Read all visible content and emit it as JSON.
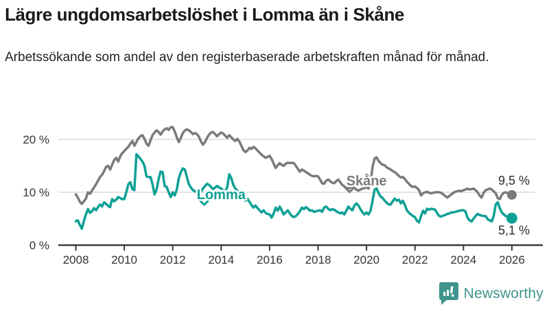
{
  "title": "Lägre ungdomsarbetslöshet i Lomma än i Skåne",
  "subtitle": "Arbetssökande som andel av den registerbaserade arbetskraften månad för månad.",
  "footer": {
    "brand": "Newsworthy",
    "logo_icon": "bar-chart-speech-bubble-icon"
  },
  "colors": {
    "lomma": "#0ea095",
    "skane": "#7a7a7a",
    "brand": "#3e948d",
    "grid": "#dcdcdc",
    "axis": "#3a3a3a",
    "text": "#1a1a1a"
  },
  "chart_data": {
    "type": "line",
    "unit": "%",
    "x_start_year": 2008,
    "x_interval": "monthly",
    "x_tick_years": [
      2008,
      2010,
      2012,
      2014,
      2016,
      2018,
      2020,
      2022,
      2024,
      2026
    ],
    "y_ticks": [
      {
        "value": 0,
        "label": "0 %"
      },
      {
        "value": 10,
        "label": "10 %"
      },
      {
        "value": 20,
        "label": "20 %"
      }
    ],
    "ylim": [
      0,
      24
    ],
    "grid": true,
    "annotations": [
      {
        "text": "Skåne",
        "x": 2020.0,
        "y": 12.2,
        "chevron_x": 2019.3,
        "chevron_y": 10.3,
        "color": "#7a7a7a"
      },
      {
        "text": "Lomma",
        "x": 2014.0,
        "y": 9.6,
        "chevron_x": 2013.3,
        "chevron_y": 7.9,
        "color": "#0ea095"
      }
    ],
    "series": [
      {
        "name": "Skåne",
        "color": "#7a7a7a",
        "end_label": "9,5 %",
        "end_value": 9.5,
        "values": [
          9.6,
          9.0,
          8.2,
          7.8,
          8.3,
          8.8,
          10.0,
          9.7,
          10.3,
          10.9,
          11.5,
          12.2,
          12.9,
          13.3,
          14.0,
          14.8,
          15.0,
          14.3,
          15.2,
          16.1,
          16.5,
          15.8,
          16.8,
          17.4,
          17.8,
          18.2,
          18.6,
          19.2,
          19.7,
          18.8,
          19.5,
          20.2,
          20.6,
          20.8,
          20.1,
          19.2,
          18.8,
          19.8,
          20.8,
          21.3,
          21.7,
          21.4,
          20.9,
          21.5,
          21.9,
          22.1,
          21.8,
          22.3,
          22.3,
          21.5,
          20.4,
          19.5,
          20.3,
          21.2,
          21.7,
          21.9,
          21.7,
          21.4,
          21.0,
          21.2,
          21.0,
          20.5,
          19.6,
          19.0,
          19.5,
          20.3,
          20.9,
          21.3,
          21.4,
          21.0,
          20.6,
          21.0,
          21.3,
          21.1,
          20.7,
          20.3,
          20.8,
          20.4,
          20.0,
          19.7,
          20.1,
          19.6,
          18.8,
          18.0,
          17.6,
          17.9,
          18.4,
          18.2,
          18.6,
          18.3,
          17.9,
          17.5,
          17.1,
          16.8,
          16.5,
          16.7,
          16.9,
          16.3,
          15.4,
          14.6,
          15.1,
          15.5,
          15.2,
          15.0,
          15.4,
          15.6,
          15.5,
          15.6,
          15.5,
          15.0,
          14.4,
          13.9,
          14.3,
          14.1,
          13.8,
          13.6,
          13.3,
          13.1,
          13.0,
          13.1,
          13.0,
          12.4,
          11.7,
          11.6,
          12.2,
          12.4,
          12.1,
          11.8,
          11.7,
          12.1,
          12.4,
          11.9,
          11.4,
          11.1,
          10.8,
          10.7,
          10.9,
          11.1,
          10.8,
          10.5,
          10.3,
          10.5,
          10.7,
          10.8,
          10.9,
          10.7,
          11.8,
          14.8,
          16.4,
          16.6,
          15.9,
          15.5,
          15.2,
          15.1,
          14.7,
          14.5,
          14.3,
          14.0,
          13.8,
          13.5,
          13.1,
          12.8,
          12.9,
          12.5,
          12.0,
          11.6,
          11.2,
          11.0,
          11.1,
          10.8,
          10.4,
          9.4,
          9.8,
          10.0,
          10.1,
          9.9,
          9.8,
          9.9,
          10.0,
          10.0,
          10.0,
          9.9,
          9.6,
          9.3,
          9.0,
          9.3,
          9.6,
          9.9,
          10.1,
          10.2,
          10.3,
          10.2,
          10.4,
          10.5,
          10.7,
          10.5,
          10.6,
          10.7,
          10.4,
          10.0,
          9.4,
          9.0,
          9.9,
          10.4,
          10.5,
          10.7,
          10.5,
          10.2,
          9.8,
          8.9,
          8.7,
          9.5,
          9.9,
          10.0,
          9.8,
          9.6,
          9.5
        ]
      },
      {
        "name": "Lomma",
        "color": "#0ea095",
        "end_label": "5,1 %",
        "end_value": 5.1,
        "values": [
          4.5,
          4.7,
          3.8,
          3.1,
          4.6,
          5.8,
          6.8,
          6.1,
          6.4,
          7.0,
          6.6,
          7.2,
          7.7,
          7.3,
          8.1,
          7.8,
          7.4,
          7.2,
          8.7,
          8.3,
          8.6,
          9.1,
          8.9,
          8.7,
          8.7,
          10.0,
          11.5,
          11.9,
          10.6,
          10.4,
          17.2,
          16.8,
          16.3,
          15.8,
          15.0,
          13.0,
          12.9,
          12.9,
          11.5,
          9.6,
          10.5,
          12.5,
          13.9,
          13.8,
          11.2,
          11.0,
          10.0,
          9.1,
          10.0,
          9.4,
          10.5,
          12.6,
          13.8,
          14.5,
          14.3,
          12.9,
          11.5,
          10.9,
          10.4,
          10.2,
          10.0,
          9.7,
          10.1,
          10.7,
          11.2,
          11.6,
          11.4,
          11.0,
          10.6,
          10.9,
          11.2,
          10.9,
          10.7,
          10.3,
          10.0,
          11.0,
          13.4,
          12.7,
          11.4,
          10.7,
          10.3,
          9.9,
          9.5,
          8.9,
          8.4,
          8.8,
          8.2,
          7.6,
          7.1,
          7.5,
          7.0,
          6.6,
          6.2,
          6.6,
          6.1,
          5.9,
          5.8,
          5.2,
          6.0,
          7.1,
          6.5,
          7.3,
          6.6,
          5.8,
          6.2,
          6.6,
          6.0,
          5.5,
          5.3,
          5.5,
          5.9,
          6.4,
          7.1,
          6.8,
          7.2,
          6.9,
          6.5,
          6.6,
          6.3,
          6.4,
          6.5,
          6.6,
          6.3,
          7.1,
          7.3,
          6.9,
          6.6,
          6.8,
          6.7,
          6.4,
          6.2,
          6.0,
          6.2,
          5.8,
          6.5,
          7.3,
          6.9,
          6.6,
          7.5,
          7.9,
          7.5,
          6.8,
          6.2,
          5.8,
          6.2,
          5.8,
          6.5,
          8.4,
          10.5,
          10.7,
          9.8,
          9.2,
          8.9,
          8.4,
          8.0,
          7.7,
          7.7,
          8.3,
          8.8,
          8.4,
          8.6,
          7.9,
          8.4,
          7.6,
          6.6,
          6.1,
          5.8,
          5.5,
          5.3,
          4.6,
          4.3,
          5.5,
          6.5,
          6.0,
          6.9,
          6.7,
          6.9,
          6.8,
          6.7,
          6.0,
          5.5,
          5.4,
          5.6,
          5.7,
          5.9,
          6.0,
          6.2,
          6.2,
          6.3,
          6.4,
          6.5,
          6.6,
          6.6,
          6.4,
          5.2,
          4.7,
          4.5,
          5.0,
          5.5,
          5.9,
          5.7,
          5.6,
          5.5,
          5.5,
          4.9,
          4.7,
          4.5,
          5.5,
          7.7,
          8.1,
          7.0,
          6.2,
          5.8,
          5.5,
          5.3,
          5.2,
          5.1
        ]
      }
    ]
  }
}
